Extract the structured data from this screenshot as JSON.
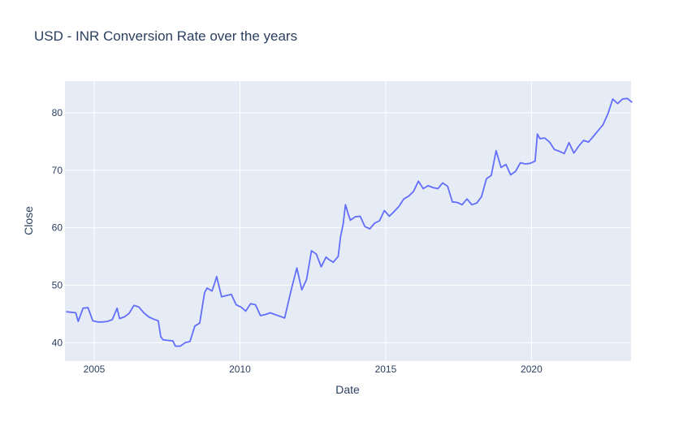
{
  "chart_data": {
    "type": "line",
    "title": "USD - INR Conversion Rate over the years",
    "xlabel": "Date",
    "ylabel": "Close",
    "x_range": [
      "2004-01-01",
      "2023-06-01"
    ],
    "ylim": [
      36.8,
      85.5
    ],
    "x_ticks": [
      {
        "label": "2005",
        "date": "2005-01-01"
      },
      {
        "label": "2010",
        "date": "2010-01-01"
      },
      {
        "label": "2015",
        "date": "2015-01-01"
      },
      {
        "label": "2020",
        "date": "2020-01-01"
      }
    ],
    "y_ticks": [
      40,
      50,
      60,
      70,
      80
    ],
    "grid": true,
    "colors": {
      "line": "#636efa",
      "plot_bg": "#e5ecf6",
      "grid": "#ffffff",
      "text": "#2a3f5f"
    },
    "series": [
      {
        "x": [
          "2004-01",
          "2004-03",
          "2004-05",
          "2004-06",
          "2004-08",
          "2004-10",
          "2004-12",
          "2005-02",
          "2005-04",
          "2005-06",
          "2005-08",
          "2005-10",
          "2005-11",
          "2006-01",
          "2006-03",
          "2006-05",
          "2006-07",
          "2006-09",
          "2006-11",
          "2007-01",
          "2007-03",
          "2007-04",
          "2007-05",
          "2007-07",
          "2007-09",
          "2007-10",
          "2007-12",
          "2008-02",
          "2008-04",
          "2008-06",
          "2008-08",
          "2008-10",
          "2008-11",
          "2009-01",
          "2009-02",
          "2009-03",
          "2009-05",
          "2009-07",
          "2009-09",
          "2009-11",
          "2010-01",
          "2010-03",
          "2010-05",
          "2010-07",
          "2010-09",
          "2010-11",
          "2011-01",
          "2011-03",
          "2011-05",
          "2011-07",
          "2011-09",
          "2011-10",
          "2011-12",
          "2012-02",
          "2012-04",
          "2012-06",
          "2012-08",
          "2012-10",
          "2012-12",
          "2013-01",
          "2013-03",
          "2013-05",
          "2013-06",
          "2013-07",
          "2013-08",
          "2013-09",
          "2013-10",
          "2013-12",
          "2014-02",
          "2014-04",
          "2014-06",
          "2014-08",
          "2014-10",
          "2014-12",
          "2015-02",
          "2015-04",
          "2015-06",
          "2015-08",
          "2015-10",
          "2015-12",
          "2016-02",
          "2016-04",
          "2016-06",
          "2016-08",
          "2016-10",
          "2016-12",
          "2017-02",
          "2017-04",
          "2017-06",
          "2017-08",
          "2017-10",
          "2017-12",
          "2018-02",
          "2018-04",
          "2018-06",
          "2018-08",
          "2018-10",
          "2018-12",
          "2019-02",
          "2019-04",
          "2019-06",
          "2019-08",
          "2019-10",
          "2019-12",
          "2020-02",
          "2020-03",
          "2020-04",
          "2020-06",
          "2020-08",
          "2020-10",
          "2020-12",
          "2021-02",
          "2021-04",
          "2021-06",
          "2021-08",
          "2021-10",
          "2021-12",
          "2022-02",
          "2022-04",
          "2022-06",
          "2022-08",
          "2022-10",
          "2022-12",
          "2023-02",
          "2023-04",
          "2023-06"
        ],
        "y": [
          45.4,
          45.3,
          45.2,
          43.7,
          46.0,
          46.1,
          43.8,
          43.6,
          43.6,
          43.7,
          44.0,
          46.0,
          44.2,
          44.5,
          45.1,
          46.5,
          46.2,
          45.2,
          44.5,
          44.1,
          43.8,
          41.0,
          40.5,
          40.4,
          40.3,
          39.4,
          39.4,
          40.0,
          40.2,
          42.9,
          43.4,
          48.7,
          49.5,
          49.0,
          50.2,
          51.5,
          48.0,
          48.2,
          48.4,
          46.6,
          46.2,
          45.5,
          46.8,
          46.6,
          44.7,
          44.9,
          45.2,
          44.9,
          44.6,
          44.3,
          48.0,
          49.7,
          53.0,
          49.2,
          51.0,
          56.0,
          55.4,
          53.2,
          54.9,
          54.5,
          54.0,
          55.0,
          58.5,
          60.5,
          64.0,
          62.5,
          61.3,
          61.9,
          62.0,
          60.2,
          59.8,
          60.8,
          61.2,
          63.0,
          62.0,
          62.8,
          63.7,
          65.0,
          65.5,
          66.3,
          68.1,
          66.8,
          67.3,
          67.0,
          66.8,
          67.8,
          67.2,
          64.5,
          64.4,
          64.0,
          65.0,
          64.0,
          64.3,
          65.4,
          68.5,
          69.1,
          73.4,
          70.5,
          71.0,
          69.2,
          69.8,
          71.3,
          71.1,
          71.2,
          71.6,
          76.3,
          75.5,
          75.6,
          74.9,
          73.6,
          73.3,
          72.9,
          74.8,
          73.0,
          74.2,
          75.2,
          74.9,
          75.9,
          76.9,
          77.9,
          79.8,
          82.4,
          81.6,
          82.4,
          82.5,
          81.8
        ]
      }
    ]
  }
}
